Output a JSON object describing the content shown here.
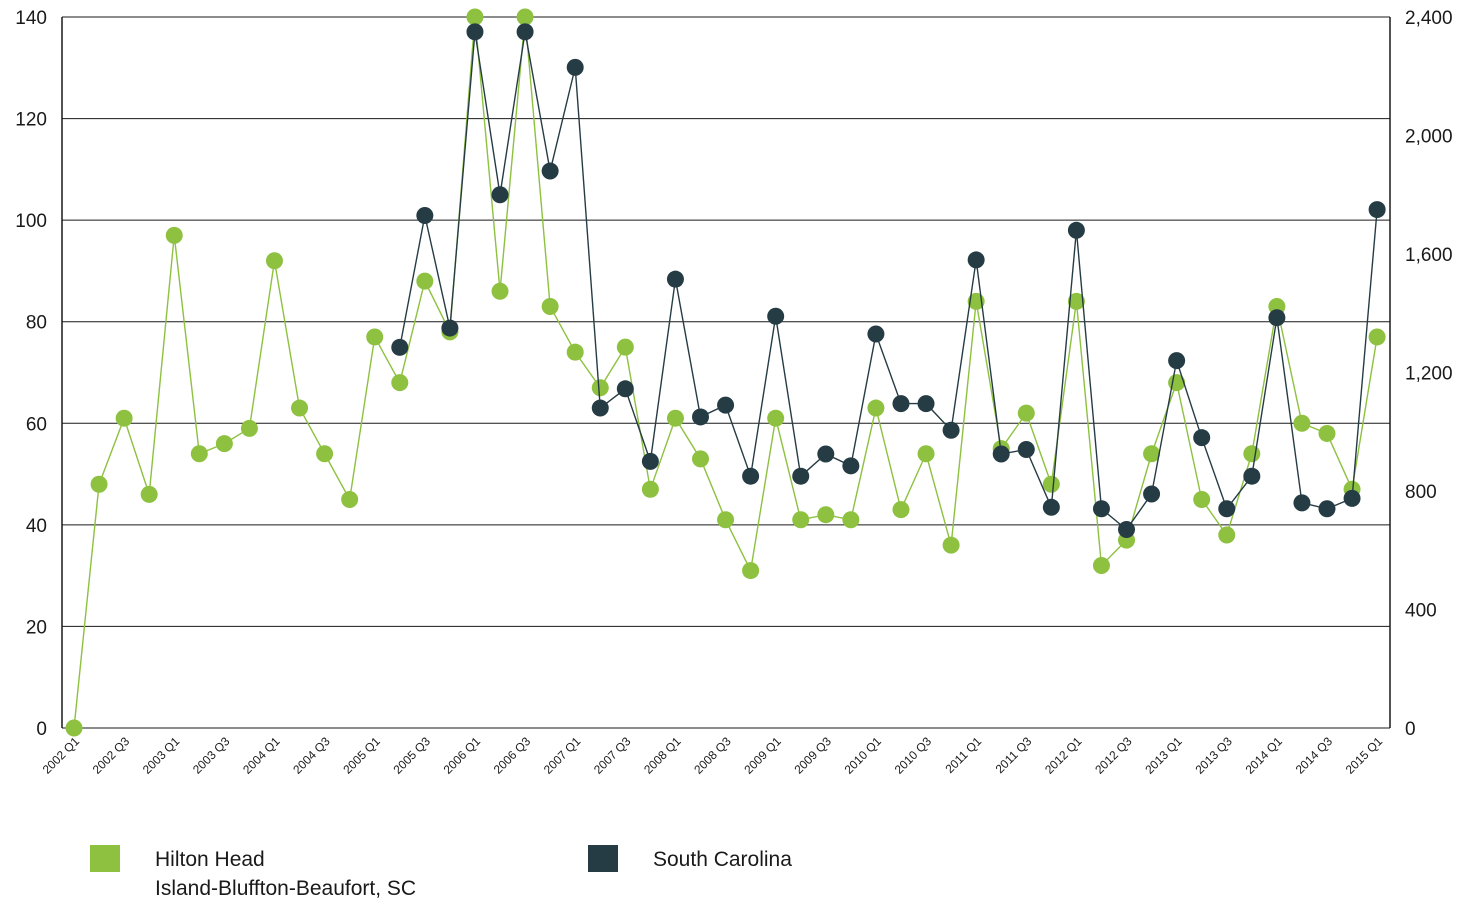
{
  "chart_data": {
    "type": "line",
    "title": "",
    "xlabel": "",
    "ylabel": "",
    "categories": [
      "2002 Q1",
      "2002 Q2",
      "2002 Q3",
      "2002 Q4",
      "2003 Q1",
      "2003 Q2",
      "2003 Q3",
      "2003 Q4",
      "2004 Q1",
      "2004 Q2",
      "2004 Q3",
      "2004 Q4",
      "2005 Q1",
      "2005 Q2",
      "2005 Q3",
      "2005 Q4",
      "2006 Q1",
      "2006 Q2",
      "2006 Q3",
      "2006 Q4",
      "2007 Q1",
      "2007 Q2",
      "2007 Q3",
      "2007 Q4",
      "2008 Q1",
      "2008 Q2",
      "2008 Q3",
      "2008 Q4",
      "2009 Q1",
      "2009 Q2",
      "2009 Q3",
      "2009 Q4",
      "2010 Q1",
      "2010 Q2",
      "2010 Q3",
      "2010 Q4",
      "2011 Q1",
      "2011 Q2",
      "2011 Q3",
      "2011 Q4",
      "2012 Q1",
      "2012 Q2",
      "2012 Q3",
      "2012 Q4",
      "2013 Q1",
      "2013 Q2",
      "2013 Q3",
      "2013 Q4",
      "2014 Q1",
      "2014 Q2",
      "2014 Q3",
      "2014 Q4",
      "2015 Q1"
    ],
    "x_tick_labels": [
      "2002 Q1",
      "2002 Q3",
      "2003 Q1",
      "2003 Q3",
      "2004 Q1",
      "2004 Q3",
      "2005 Q1",
      "2005 Q3",
      "2006 Q1",
      "2006 Q3",
      "2007 Q1",
      "2007 Q3",
      "2008 Q1",
      "2008 Q3",
      "2009 Q1",
      "2009 Q3",
      "2010 Q1",
      "2010 Q3",
      "2011 Q1",
      "2011 Q3",
      "2012 Q1",
      "2012 Q3",
      "2013 Q1",
      "2013 Q3",
      "2014 Q1",
      "2014 Q3",
      "2015 Q1"
    ],
    "y_left": {
      "ticks": [
        "0",
        "20",
        "40",
        "60",
        "80",
        "100",
        "120",
        "140"
      ],
      "ylim": [
        0,
        140
      ]
    },
    "y_right": {
      "ticks": [
        "0",
        "400",
        "800",
        "1,200",
        "1,600",
        "2,000",
        "2,400"
      ],
      "ylim": [
        0,
        2400
      ]
    },
    "grid": true,
    "legend_placement": "bottom",
    "series": [
      {
        "name": "Hilton Head\nIsland-Bluffton-Beaufort, SC",
        "color": "#8dc13f",
        "axis": "left",
        "values": [
          0,
          48,
          61,
          46,
          97,
          54,
          56,
          59,
          92,
          63,
          54,
          45,
          77,
          68,
          88,
          78,
          140,
          86,
          140,
          83,
          74,
          67,
          75,
          47,
          61,
          53,
          41,
          31,
          61,
          41,
          42,
          41,
          63,
          43,
          54,
          36,
          84,
          55,
          62,
          48,
          84,
          32,
          37,
          54,
          68,
          45,
          38,
          54,
          83,
          60,
          58,
          47,
          77
        ]
      },
      {
        "name": "South Carolina",
        "color": "#263c44",
        "axis": "right",
        "values": [
          null,
          null,
          null,
          null,
          null,
          null,
          null,
          null,
          null,
          null,
          null,
          null,
          null,
          1285,
          1730,
          1350,
          2350,
          1800,
          2350,
          1880,
          2230,
          1080,
          1145,
          900,
          1515,
          1050,
          1090,
          850,
          1390,
          850,
          925,
          885,
          1330,
          1095,
          1095,
          1005,
          1580,
          925,
          940,
          745,
          1680,
          740,
          670,
          790,
          1240,
          980,
          740,
          850,
          1385,
          760,
          740,
          775,
          1750
        ]
      }
    ]
  }
}
